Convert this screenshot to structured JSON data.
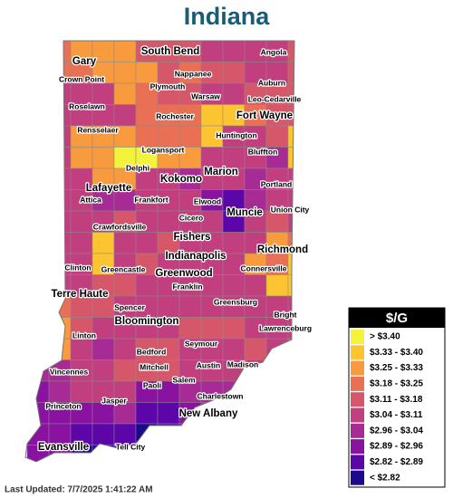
{
  "title": "Indiana",
  "cities": [
    "Gary",
    "Crown Point",
    "South Bend",
    "Angola",
    "Nappanee",
    "Auburn",
    "Plymouth",
    "Warsaw",
    "Leo-Cedarville",
    "Roselawn",
    "Rochester",
    "Fort Wayne",
    "Rensselaer",
    "Huntington",
    "Logansport",
    "Bluffton",
    "Delphi",
    "Marion",
    "Kokomo",
    "Lafayette",
    "Frankfort",
    "Portland",
    "Elwood",
    "Attica",
    "Muncie",
    "Union City",
    "Crawfordsville",
    "Cicero",
    "Fishers",
    "Indianapolis",
    "Richmond",
    "Clinton",
    "Greencastle",
    "Greenwood",
    "Connersville",
    "Franklin",
    "Terre Haute",
    "Greensburg",
    "Spencer",
    "Bloomington",
    "Bright",
    "Lawrenceburg",
    "Linton",
    "Seymour",
    "Bedford",
    "Mitchell",
    "Austin",
    "Madison",
    "Vincennes",
    "Salem",
    "Paoli",
    "Charlestown",
    "Princeton",
    "Jasper",
    "New Albany",
    "Evansville",
    "Tell City"
  ],
  "legend": {
    "title": "$/G",
    "items": [
      {
        "label": "> $3.40",
        "color": "#f3f33b"
      },
      {
        "label": "$3.33 - $3.40",
        "color": "#fcc431"
      },
      {
        "label": "$3.25 - $3.33",
        "color": "#f89b3f"
      },
      {
        "label": "$3.18 - $3.25",
        "color": "#ea7055"
      },
      {
        "label": "$3.11 - $3.18",
        "color": "#d65769"
      },
      {
        "label": "$3.04 - $3.11",
        "color": "#c13f7f"
      },
      {
        "label": "$2.96 - $3.04",
        "color": "#a62b95"
      },
      {
        "label": "$2.89 - $2.96",
        "color": "#8912a1"
      },
      {
        "label": "$2.82 - $2.89",
        "color": "#5c05a8"
      },
      {
        "label": "< $2.82",
        "color": "#1c0a8c"
      }
    ]
  },
  "last_updated": "Last Updated: 7/7/2025 1:41:22 AM"
}
